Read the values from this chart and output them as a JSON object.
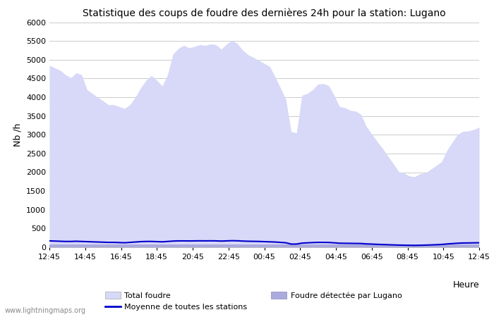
{
  "title": "Statistique des coups de foudre des dernières 24h pour la station: Lugano",
  "ylabel": "Nb /h",
  "xlabel": "Heure",
  "watermark": "www.lightningmaps.org",
  "ylim": [
    0,
    6000
  ],
  "yticks": [
    0,
    500,
    1000,
    1500,
    2000,
    2500,
    3000,
    3500,
    4000,
    4500,
    5000,
    5500,
    6000
  ],
  "xtick_labels": [
    "12:45",
    "14:45",
    "16:45",
    "18:45",
    "20:45",
    "22:45",
    "00:45",
    "02:45",
    "04:45",
    "06:45",
    "08:45",
    "10:45",
    "12:45"
  ],
  "bg_color": "#ffffff",
  "plot_bg_color": "#ffffff",
  "grid_color": "#cccccc",
  "total_foudre_color": "#d8d8f8",
  "lugano_color": "#aaaadd",
  "moyenne_color": "#0000cc",
  "legend_labels": [
    "Total foudre",
    "Moyenne de toutes les stations",
    "Foudre détectée par Lugano"
  ],
  "total_foudre_values": [
    4850,
    4780,
    4720,
    4600,
    4520,
    4650,
    4600,
    4200,
    4100,
    4000,
    3900,
    3800,
    3800,
    3750,
    3700,
    3800,
    4000,
    4250,
    4450,
    4580,
    4450,
    4300,
    4600,
    5150,
    5300,
    5380,
    5320,
    5350,
    5400,
    5380,
    5420,
    5400,
    5280,
    5420,
    5520,
    5430,
    5250,
    5130,
    5060,
    4980,
    4900,
    4820,
    4550,
    4250,
    3950,
    3080,
    3050,
    4050,
    4100,
    4200,
    4350,
    4360,
    4310,
    4050,
    3750,
    3720,
    3650,
    3630,
    3540,
    3220,
    3020,
    2820,
    2640,
    2430,
    2230,
    2020,
    1980,
    1900,
    1880,
    1960,
    1980,
    2080,
    2180,
    2280,
    2580,
    2800,
    3010,
    3090,
    3100,
    3140,
    3200
  ],
  "lugano_values": [
    80,
    80,
    80,
    80,
    80,
    80,
    80,
    80,
    80,
    80,
    80,
    80,
    80,
    80,
    80,
    80,
    80,
    80,
    80,
    80,
    80,
    80,
    80,
    80,
    80,
    80,
    80,
    80,
    80,
    80,
    80,
    80,
    80,
    80,
    80,
    80,
    80,
    80,
    80,
    80,
    80,
    80,
    80,
    80,
    80,
    80,
    80,
    80,
    80,
    80,
    80,
    80,
    80,
    80,
    80,
    80,
    80,
    80,
    80,
    80,
    80,
    80,
    80,
    80,
    80,
    80,
    80,
    80,
    80,
    80,
    80,
    80,
    80,
    80,
    80,
    80,
    80,
    80,
    80,
    80,
    80
  ],
  "moyenne_values": [
    170,
    165,
    160,
    155,
    155,
    160,
    155,
    150,
    145,
    140,
    135,
    130,
    130,
    125,
    120,
    130,
    140,
    150,
    155,
    155,
    150,
    145,
    155,
    165,
    170,
    170,
    168,
    170,
    172,
    170,
    172,
    170,
    165,
    170,
    175,
    172,
    165,
    160,
    158,
    155,
    150,
    145,
    140,
    130,
    120,
    85,
    85,
    110,
    118,
    125,
    130,
    130,
    128,
    118,
    108,
    106,
    104,
    102,
    100,
    90,
    85,
    78,
    73,
    68,
    63,
    58,
    55,
    52,
    50,
    53,
    57,
    62,
    68,
    75,
    88,
    98,
    108,
    114,
    115,
    118,
    120
  ]
}
